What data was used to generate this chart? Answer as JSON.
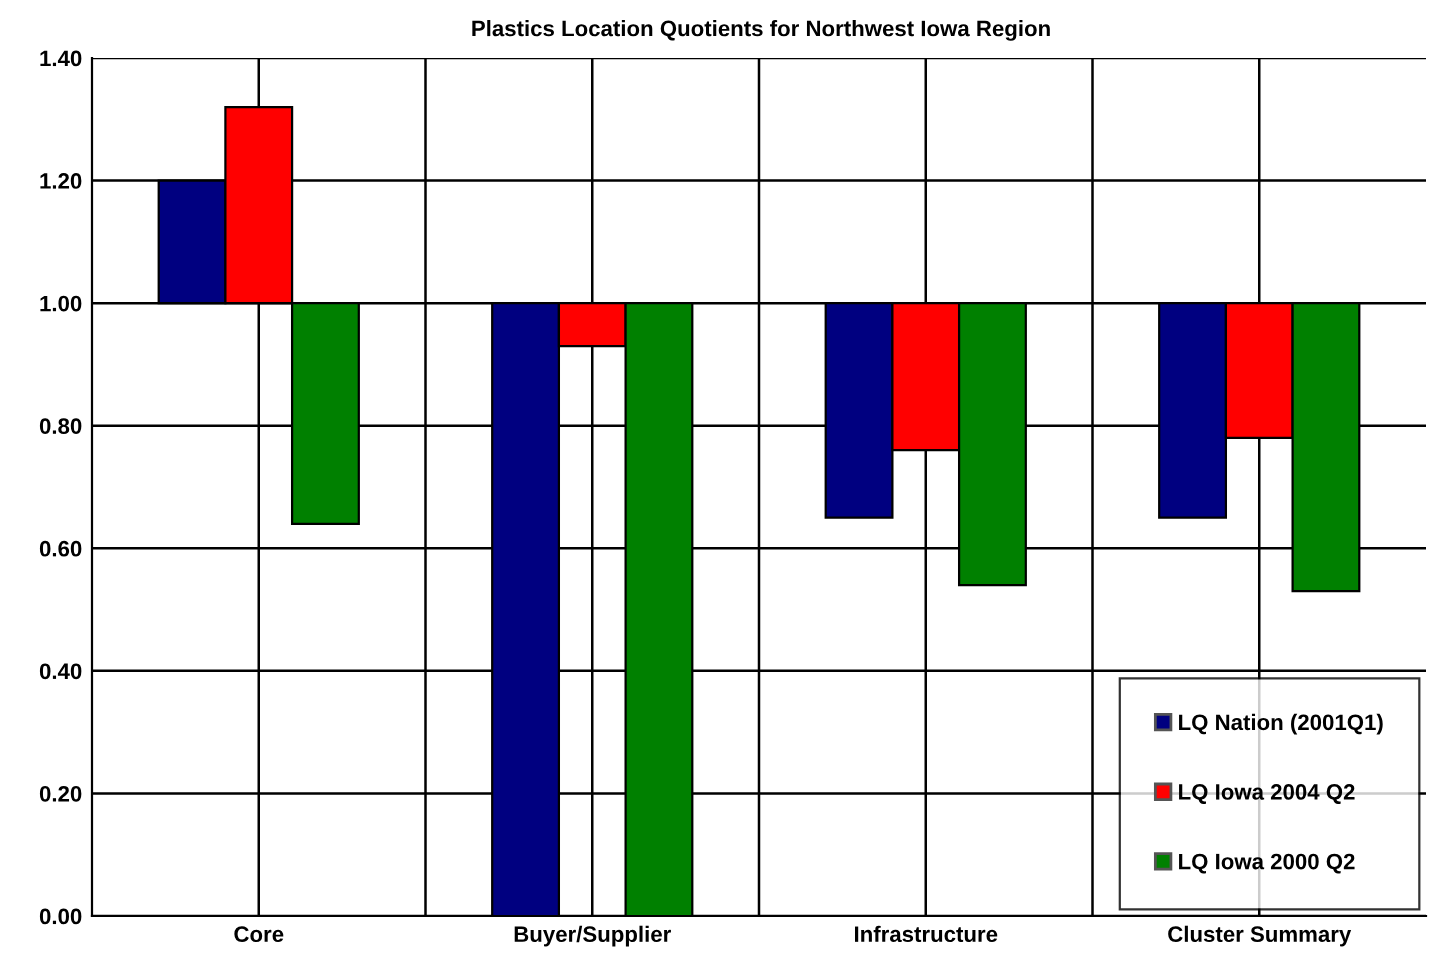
{
  "chart_data": {
    "type": "bar",
    "title": "Plastics Location Quotients for Northwest Iowa Region",
    "categories": [
      "Core",
      "Buyer/Supplier",
      "Infrastructure",
      "Cluster Summary"
    ],
    "series": [
      {
        "name": "LQ Nation (2001Q1)",
        "color": "#000080",
        "base": [
          1.0,
          1.0,
          1.0,
          1.0
        ],
        "values": [
          0.2,
          -1.0,
          -0.35,
          -0.35
        ]
      },
      {
        "name": "LQ Iowa 2004 Q2",
        "color": "#ff0000",
        "base": [
          1.0,
          1.0,
          1.0,
          1.0
        ],
        "values": [
          0.32,
          -0.07,
          -0.24,
          -0.22
        ]
      },
      {
        "name": "LQ Iowa 2000 Q2",
        "color": "#008000",
        "base": [
          1.0,
          1.0,
          1.0,
          1.0
        ],
        "values": [
          -0.36,
          -1.0,
          -0.46,
          -0.47
        ]
      }
    ],
    "ylim": [
      0,
      1.4
    ],
    "yticks": [
      {
        "value": 0,
        "label": "0.00"
      },
      {
        "value": 0.2,
        "label": "0.20"
      },
      {
        "value": 0.4,
        "label": "0.40"
      },
      {
        "value": 0.6,
        "label": "0.60"
      },
      {
        "value": 0.8,
        "label": "0.80"
      },
      {
        "value": 1.0,
        "label": "1.00"
      },
      {
        "value": 1.2,
        "label": "1.20"
      },
      {
        "value": 1.4,
        "label": "1.40"
      }
    ],
    "grid": true,
    "legend": "bottom right"
  }
}
